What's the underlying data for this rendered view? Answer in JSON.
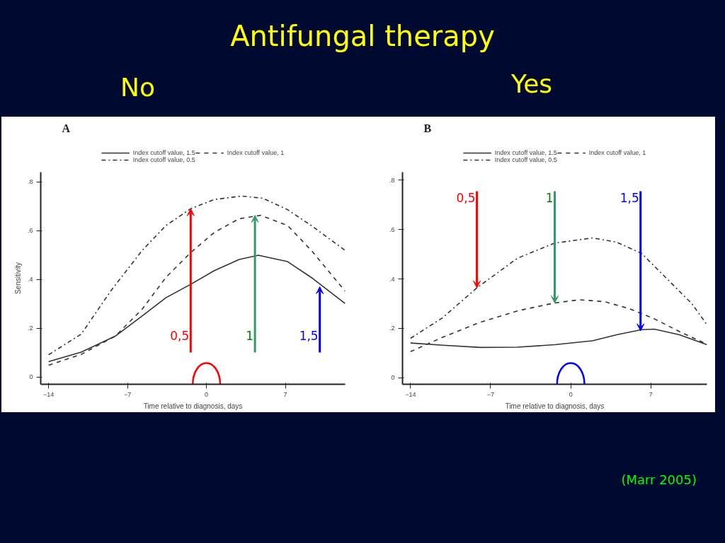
{
  "chart_data": [
    {
      "type": "line",
      "title": "A",
      "subtitle": "No",
      "xlabel": "Time relative to diagnosis, days",
      "ylabel": "Sensitivity",
      "xlim": [
        -14.7,
        12.3
      ],
      "ylim": [
        -0.03,
        0.84
      ],
      "xticks": [
        -14,
        -7,
        0,
        7
      ],
      "yticks": [
        {
          "value": 0,
          "label": "0"
        },
        {
          "value": 0.2,
          "label": ".2"
        },
        {
          "value": 0.4,
          "label": ".4"
        },
        {
          "value": 0.6,
          "label": ".6"
        },
        {
          "value": 0.8,
          "label": ".8"
        }
      ],
      "legend": "top",
      "grid": false,
      "marker": "none",
      "annotations": [
        "Antifungal therapy",
        {
          "text": "0,5",
          "x": -1.4,
          "y": 0.69
        },
        {
          "text": "1",
          "x": 4.3,
          "y": 0.663
        },
        {
          "text": "1,5",
          "x": 10.05,
          "y": 0.37
        }
      ],
      "series": [
        {
          "name": "Index cutoff value, 1.5",
          "color": "#333333",
          "line_style": "solid",
          "x": [
            -14,
            -11.1,
            -8.1,
            -5.7,
            -3.6,
            -1.4,
            0.7,
            2.9,
            4.6,
            7.2,
            9.3,
            12.3
          ],
          "values": [
            0.063,
            0.102,
            0.167,
            0.25,
            0.325,
            0.38,
            0.436,
            0.482,
            0.499,
            0.473,
            0.408,
            0.301
          ]
        },
        {
          "name": "Index cutoff value, 1",
          "color": "#333333",
          "line_style": "dashed",
          "x": [
            -14,
            -11.1,
            -8.1,
            -5.7,
            -3.6,
            -1.4,
            0.7,
            2.9,
            4.8,
            7.2,
            9.3,
            12.3
          ],
          "values": [
            0.048,
            0.093,
            0.167,
            0.278,
            0.408,
            0.51,
            0.593,
            0.649,
            0.663,
            0.621,
            0.519,
            0.352
          ]
        },
        {
          "name": "Index cutoff value, 0.5",
          "color": "#333333",
          "line_style": "dashdot",
          "x": [
            -14,
            -11.1,
            -8.5,
            -5.7,
            -3.6,
            -1.4,
            0.7,
            3.1,
            5.0,
            7.2,
            9.3,
            12.3
          ],
          "values": [
            0.091,
            0.176,
            0.352,
            0.519,
            0.621,
            0.69,
            0.728,
            0.742,
            0.733,
            0.686,
            0.621,
            0.519
          ]
        }
      ]
    },
    {
      "type": "line",
      "title": "B",
      "subtitle": "Yes",
      "xlabel": "Time relative to diagnosis, days",
      "ylabel": null,
      "xlim": [
        -14.7,
        11.9
      ],
      "ylim": [
        -0.026,
        0.832
      ],
      "xticks": [
        -14,
        -7,
        0,
        7
      ],
      "yticks": [
        {
          "value": 0,
          "label": "0"
        },
        {
          "value": 0.2,
          "label": ".2"
        },
        {
          "value": 0.4,
          "label": ".4"
        },
        {
          "value": 0.6,
          "label": ".6"
        },
        {
          "value": 0.8,
          "label": ".8"
        }
      ],
      "legend": "top",
      "grid": false,
      "marker": "none",
      "annotations": [
        "(Marr 2005)",
        {
          "text": "0,5",
          "x": -8.2,
          "y": 0.364
        },
        {
          "text": "1",
          "x": -1.4,
          "y": 0.303
        },
        {
          "text": "1,5",
          "x": 6.1,
          "y": 0.19
        }
      ],
      "series": [
        {
          "name": "Index cutoff value, 1.5",
          "color": "#333333",
          "line_style": "solid",
          "x": [
            -14,
            -11.2,
            -7.9,
            -4.65,
            -1.4,
            1.9,
            4.0,
            6.2,
            7.3,
            9.5,
            11.9
          ],
          "values": [
            0.141,
            0.132,
            0.123,
            0.124,
            0.134,
            0.15,
            0.174,
            0.195,
            0.197,
            0.174,
            0.134
          ]
        },
        {
          "name": "Index cutoff value, 1",
          "color": "#333333",
          "line_style": "dashed",
          "x": [
            -14,
            -11.2,
            -7.9,
            -4.65,
            -1.4,
            0.8,
            2.96,
            5.1,
            7.3,
            9.5,
            11.9
          ],
          "values": [
            0.106,
            0.164,
            0.225,
            0.271,
            0.303,
            0.316,
            0.308,
            0.28,
            0.239,
            0.187,
            0.136
          ]
        },
        {
          "name": "Index cutoff value, 0.5",
          "color": "#333333",
          "line_style": "dashdot",
          "x": [
            -14,
            -11.2,
            -8.2,
            -4.65,
            -1.4,
            1.9,
            4.0,
            6.2,
            8.4,
            10.6,
            11.9
          ],
          "values": [
            0.16,
            0.243,
            0.364,
            0.484,
            0.545,
            0.566,
            0.549,
            0.503,
            0.401,
            0.299,
            0.215
          ]
        }
      ]
    }
  ]
}
